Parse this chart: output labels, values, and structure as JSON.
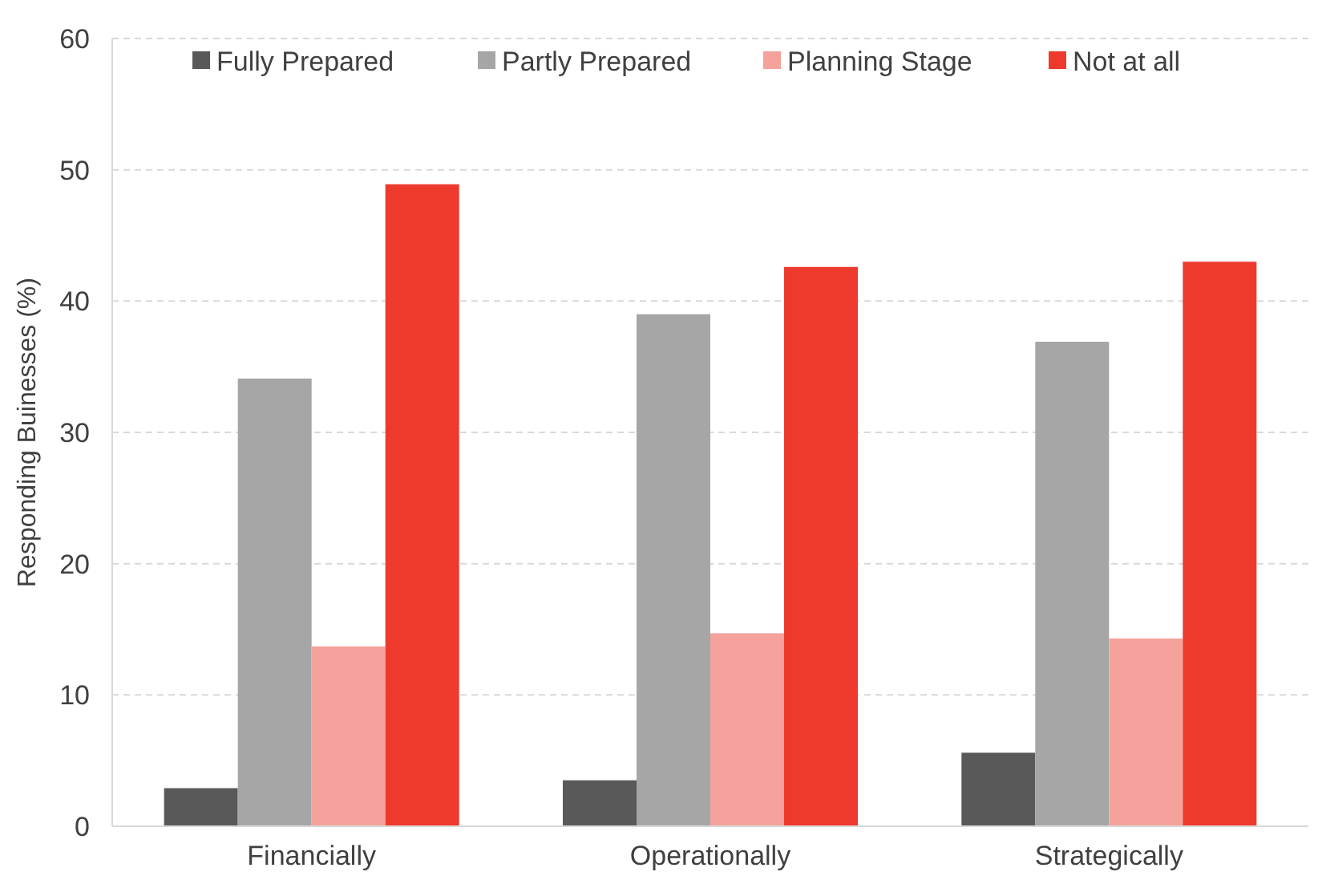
{
  "chart_data": {
    "type": "bar",
    "ylabel": "Responding Buinesses (%)",
    "categories": [
      "Financially",
      "Operationally",
      "Strategically"
    ],
    "series": [
      {
        "name": "Fully Prepared",
        "color": "#595959",
        "values": [
          2.9,
          3.5,
          5.6
        ]
      },
      {
        "name": "Partly Prepared",
        "color": "#a6a6a6",
        "values": [
          34.1,
          39.0,
          36.9
        ]
      },
      {
        "name": "Planning Stage",
        "color": "#f4a29b",
        "values": [
          13.7,
          14.7,
          14.3
        ]
      },
      {
        "name": "Not at all",
        "color": "#ee3a2d",
        "values": [
          48.9,
          42.6,
          43.0
        ]
      }
    ],
    "ylim": [
      0,
      60
    ],
    "yticks": [
      0,
      10,
      20,
      30,
      40,
      50,
      60
    ],
    "grid": "y",
    "legend": "top"
  }
}
